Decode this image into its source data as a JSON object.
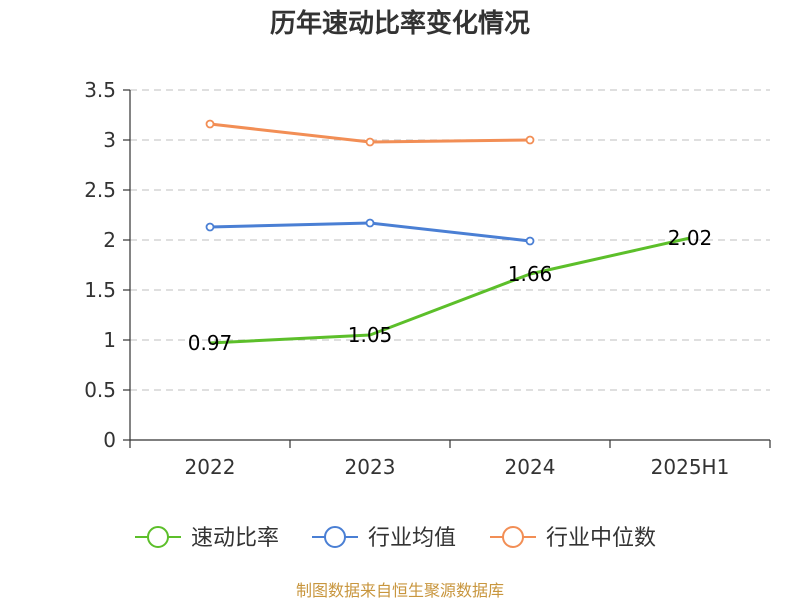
{
  "chart_data": {
    "type": "line",
    "title": "历年速动比率变化情况",
    "categories": [
      "2022",
      "2023",
      "2024",
      "2025H1"
    ],
    "y_ticks": [
      "0",
      "0.5",
      "1",
      "1.5",
      "2",
      "2.5",
      "3",
      "3.5"
    ],
    "ylim": [
      0,
      3.5
    ],
    "grid": true,
    "legend_position": "bottom",
    "series": [
      {
        "name": "速动比率",
        "color": "#5cbf2a",
        "values": [
          0.97,
          1.05,
          1.66,
          2.02
        ],
        "labels": [
          "0.97",
          "1.05",
          "1.66",
          "2.02"
        ],
        "show_markers": false
      },
      {
        "name": "行业均值",
        "color": "#4a7fd4",
        "values": [
          2.13,
          2.17,
          1.99,
          null
        ],
        "show_markers": true
      },
      {
        "name": "行业中位数",
        "color": "#f28e55",
        "values": [
          3.16,
          2.98,
          3.0,
          null
        ],
        "show_markers": true
      }
    ],
    "source": "制图数据来自恒生聚源数据库"
  }
}
